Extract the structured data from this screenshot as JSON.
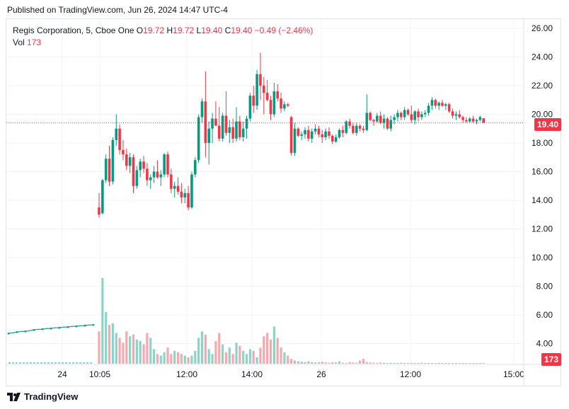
{
  "caption": "Published on TradingView.com, Jun 26, 2024 14:47 UTC-4",
  "legend": {
    "symbol": "Regis Corporation, 5, Cboe One",
    "o_label": "O",
    "o_value": "19.72",
    "h_label": "H",
    "h_value": "19.72",
    "l_label": "L",
    "l_value": "19.40",
    "c_label": "C",
    "c_value": "19.40",
    "change": "−0.49 (−2.46%)",
    "vol_label": "Vol",
    "vol_value": "173"
  },
  "price_badge": "19.40",
  "volume_badge": "173",
  "footer_brand": "TradingView",
  "colors": {
    "up": "#089981",
    "down": "#f23645",
    "up_vol": "#8fd2c6",
    "down_vol": "#f5a8ae",
    "grid": "#f0f3fa",
    "text": "#131722"
  },
  "chart_data": {
    "type": "candlestick",
    "interval": "5 min",
    "y_axis_ticks": [
      "26.00",
      "24.00",
      "22.00",
      "20.00",
      "18.00",
      "16.00",
      "14.00",
      "12.00",
      "10.00",
      "8.00",
      "6.00",
      "4.00"
    ],
    "x_axis_ticks": [
      "24",
      "10:05",
      "12:00",
      "14:00",
      "26",
      "12:00",
      "15:00"
    ],
    "ylim": [
      3.2,
      26.6
    ],
    "last_price": 19.4,
    "premarket_line": [
      4.7,
      4.75,
      4.8,
      4.85,
      4.85,
      4.9,
      4.95,
      5.0,
      5.0,
      5.05,
      5.05,
      5.1,
      5.1,
      5.15,
      5.15,
      5.2,
      5.2,
      5.25,
      5.25,
      5.3,
      5.3
    ],
    "candles": [
      [
        13.5,
        14.5,
        12.8,
        13.0
      ],
      [
        13.1,
        15.5,
        13.0,
        15.4
      ],
      [
        15.4,
        17.2,
        15.2,
        16.9
      ],
      [
        16.9,
        17.8,
        15.0,
        15.3
      ],
      [
        15.3,
        18.4,
        15.1,
        18.2
      ],
      [
        18.2,
        20.0,
        17.8,
        19.0
      ],
      [
        19.0,
        19.3,
        17.2,
        17.5
      ],
      [
        17.5,
        18.2,
        16.8,
        17.2
      ],
      [
        17.2,
        17.6,
        16.1,
        16.4
      ],
      [
        16.4,
        17.3,
        15.9,
        17.0
      ],
      [
        17.0,
        17.2,
        14.5,
        15.0
      ],
      [
        15.0,
        16.4,
        14.8,
        16.1
      ],
      [
        16.1,
        16.9,
        15.6,
        16.7
      ],
      [
        16.7,
        17.1,
        15.9,
        16.2
      ],
      [
        16.2,
        16.6,
        15.0,
        15.4
      ],
      [
        15.4,
        15.8,
        14.8,
        15.6
      ],
      [
        15.6,
        16.4,
        15.2,
        16.0
      ],
      [
        16.0,
        16.8,
        15.5,
        15.6
      ],
      [
        15.6,
        16.1,
        15.0,
        15.8
      ],
      [
        15.8,
        17.3,
        15.6,
        17.2
      ],
      [
        17.2,
        17.4,
        15.6,
        15.8
      ],
      [
        15.8,
        16.2,
        14.5,
        14.8
      ],
      [
        14.8,
        15.3,
        14.2,
        15.0
      ],
      [
        15.0,
        15.6,
        14.4,
        14.6
      ],
      [
        14.6,
        15.2,
        13.8,
        14.2
      ],
      [
        14.2,
        14.8,
        13.8,
        14.5
      ],
      [
        14.5,
        15.0,
        13.3,
        13.5
      ],
      [
        13.5,
        16.0,
        13.4,
        15.8
      ],
      [
        15.8,
        17.0,
        15.6,
        16.8
      ],
      [
        16.8,
        20.0,
        16.6,
        19.8
      ],
      [
        19.8,
        21.1,
        19.4,
        20.9
      ],
      [
        20.9,
        23.0,
        17.0,
        18.0
      ],
      [
        18.0,
        19.5,
        16.5,
        19.0
      ],
      [
        19.0,
        20.1,
        18.0,
        19.7
      ],
      [
        19.7,
        20.9,
        19.2,
        19.2
      ],
      [
        19.2,
        20.5,
        18.1,
        18.3
      ],
      [
        18.3,
        20.1,
        18.1,
        19.9
      ],
      [
        19.9,
        21.6,
        18.5,
        18.7
      ],
      [
        18.7,
        19.6,
        18.0,
        19.1
      ],
      [
        19.1,
        19.7,
        18.0,
        18.3
      ],
      [
        18.3,
        20.5,
        18.1,
        19.5
      ],
      [
        19.5,
        19.9,
        18.2,
        18.4
      ],
      [
        18.4,
        19.5,
        18.1,
        19.0
      ],
      [
        19.0,
        19.9,
        18.3,
        19.7
      ],
      [
        19.7,
        21.5,
        19.5,
        21.3
      ],
      [
        21.3,
        22.0,
        20.1,
        20.6
      ],
      [
        20.6,
        23.1,
        20.3,
        22.8
      ],
      [
        22.8,
        24.3,
        21.0,
        22.0
      ],
      [
        22.0,
        22.6,
        20.0,
        21.5
      ],
      [
        21.5,
        22.4,
        20.9,
        21.0
      ],
      [
        21.0,
        21.3,
        19.6,
        20.0
      ],
      [
        20.0,
        22.2,
        19.8,
        21.6
      ],
      [
        21.6,
        22.1,
        20.9,
        21.1
      ],
      [
        21.1,
        21.5,
        20.1,
        20.4
      ],
      [
        20.4,
        20.9,
        20.2,
        20.7
      ],
      [
        20.7,
        20.8,
        20.5,
        20.6
      ],
      [
        19.8,
        19.9,
        17.1,
        17.3
      ],
      [
        17.3,
        19.4,
        17.1,
        19.0
      ],
      [
        19.0,
        19.1,
        18.4,
        18.5
      ],
      [
        18.5,
        18.8,
        18.2,
        18.6
      ],
      [
        18.6,
        19.1,
        18.3,
        18.9
      ],
      [
        18.9,
        19.2,
        18.1,
        18.3
      ],
      [
        18.3,
        19.0,
        18.0,
        18.8
      ],
      [
        18.8,
        19.3,
        18.6,
        19.0
      ],
      [
        19.0,
        19.2,
        18.4,
        18.6
      ],
      [
        18.6,
        18.9,
        18.0,
        18.4
      ],
      [
        18.4,
        19.0,
        18.2,
        18.8
      ],
      [
        18.8,
        19.1,
        18.3,
        18.5
      ],
      [
        18.5,
        18.6,
        17.9,
        18.1
      ],
      [
        18.1,
        18.6,
        18.0,
        18.4
      ],
      [
        18.4,
        19.0,
        18.3,
        18.9
      ],
      [
        18.9,
        19.2,
        18.4,
        18.7
      ],
      [
        18.7,
        19.6,
        18.6,
        19.5
      ],
      [
        19.5,
        19.7,
        19.0,
        19.2
      ],
      [
        19.2,
        19.4,
        18.6,
        18.7
      ],
      [
        18.7,
        19.4,
        18.5,
        19.2
      ],
      [
        19.2,
        19.3,
        18.8,
        19.0
      ],
      [
        19.0,
        19.2,
        18.7,
        18.9
      ],
      [
        18.9,
        21.4,
        18.8,
        20.1
      ],
      [
        20.1,
        20.2,
        19.5,
        19.6
      ],
      [
        19.6,
        19.7,
        19.2,
        19.5
      ],
      [
        19.5,
        20.1,
        19.4,
        19.9
      ],
      [
        19.9,
        20.2,
        19.3,
        19.4
      ],
      [
        19.4,
        20.0,
        19.0,
        19.7
      ],
      [
        19.7,
        19.8,
        18.9,
        19.0
      ],
      [
        19.0,
        19.9,
        18.8,
        19.6
      ],
      [
        19.6,
        20.0,
        19.3,
        19.8
      ],
      [
        19.8,
        20.3,
        19.5,
        20.1
      ],
      [
        20.1,
        20.2,
        19.6,
        19.8
      ],
      [
        19.8,
        20.5,
        19.6,
        20.3
      ],
      [
        20.3,
        20.4,
        19.9,
        20.0
      ],
      [
        20.0,
        20.6,
        19.4,
        19.6
      ],
      [
        19.6,
        20.3,
        19.3,
        20.2
      ],
      [
        20.2,
        20.4,
        19.5,
        19.8
      ],
      [
        19.8,
        20.2,
        19.6,
        20.0
      ],
      [
        20.0,
        20.3,
        19.8,
        20.1
      ],
      [
        20.1,
        20.8,
        19.9,
        20.6
      ],
      [
        20.6,
        21.2,
        20.3,
        21.0
      ],
      [
        21.0,
        21.1,
        20.4,
        20.6
      ],
      [
        20.6,
        20.9,
        20.3,
        20.8
      ],
      [
        20.8,
        21.0,
        20.5,
        20.6
      ],
      [
        20.6,
        20.8,
        20.3,
        20.7
      ],
      [
        20.7,
        20.8,
        20.1,
        20.2
      ],
      [
        20.2,
        20.4,
        19.7,
        19.9
      ],
      [
        19.9,
        20.2,
        19.6,
        20.0
      ],
      [
        20.0,
        20.3,
        19.7,
        19.8
      ],
      [
        19.8,
        19.9,
        19.4,
        19.6
      ],
      [
        19.6,
        19.8,
        19.4,
        19.5
      ],
      [
        19.5,
        19.8,
        19.4,
        19.7
      ],
      [
        19.7,
        19.9,
        19.4,
        19.5
      ],
      [
        19.5,
        19.7,
        19.3,
        19.6
      ],
      [
        19.6,
        19.9,
        19.5,
        19.8
      ],
      [
        19.72,
        19.72,
        19.4,
        19.4
      ]
    ],
    "volume_scale_max": 8.6,
    "volumes": [
      5.3,
      8.6,
      6.5,
      5.7,
      5.8,
      5.2,
      4.9,
      4.6,
      5.3,
      5.0,
      5.1,
      4.8,
      4.7,
      4.5,
      5.2,
      4.9,
      4.2,
      3.9,
      3.8,
      4.0,
      4.3,
      3.9,
      4.1,
      4.0,
      3.9,
      3.8,
      3.7,
      3.8,
      4.1,
      4.9,
      5.3,
      5.1,
      4.2,
      3.9,
      4.7,
      5.2,
      4.5,
      4.0,
      4.3,
      3.9,
      4.6,
      4.4,
      4.1,
      3.9,
      4.2,
      4.1,
      3.7,
      4.3,
      5.0,
      5.2,
      4.8,
      5.6,
      4.9,
      4.3,
      4.0,
      3.8,
      3.6,
      3.5,
      3.45,
      3.42,
      3.4,
      3.45,
      3.4,
      3.38,
      3.4,
      3.42,
      3.38,
      3.36,
      3.4,
      3.38,
      3.45,
      3.36,
      3.34,
      3.4,
      3.38,
      3.36,
      3.5,
      3.6,
      3.4,
      3.38,
      3.36,
      3.35,
      3.38,
      3.36,
      3.34,
      3.36,
      3.35,
      3.34,
      3.36,
      3.33,
      3.34,
      3.35,
      3.33,
      3.34,
      3.36,
      3.33,
      3.34,
      3.33,
      3.32,
      3.33,
      3.34,
      3.33,
      3.32,
      3.33,
      3.32,
      3.32,
      3.31,
      3.32,
      3.31,
      3.31,
      3.3,
      3.3,
      3.3
    ]
  }
}
